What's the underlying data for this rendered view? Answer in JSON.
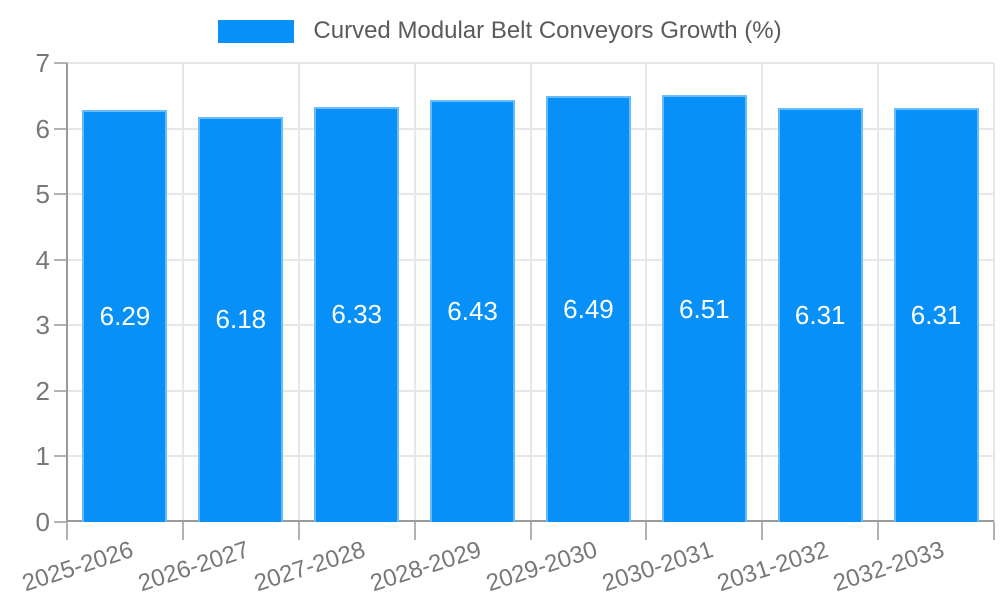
{
  "chart_data": {
    "type": "bar",
    "title": "Curved Modular Belt Conveyors Growth (%)",
    "legend_entries": [
      {
        "label": "Curved Modular Belt Conveyors Growth (%)",
        "color": "#0690f8"
      }
    ],
    "legend_position": "top",
    "categories": [
      "2025-2026",
      "2026-2027",
      "2027-2028",
      "2028-2029",
      "2029-2030",
      "2030-2031",
      "2031-2032",
      "2032-2033"
    ],
    "values": [
      6.29,
      6.18,
      6.33,
      6.43,
      6.49,
      6.51,
      6.31,
      6.31
    ],
    "value_labels": [
      "6.29",
      "6.18",
      "6.33",
      "6.43",
      "6.49",
      "6.51",
      "6.31",
      "6.31"
    ],
    "xlabel": "",
    "ylabel": "",
    "ylim": [
      0,
      7
    ],
    "yticks": [
      0,
      1,
      2,
      3,
      4,
      5,
      6,
      7
    ],
    "grid": true,
    "x_tick_rotation_deg": -18,
    "colors": {
      "bar": "#0690f8",
      "bar_border": "rgba(255,255,255,0.4)",
      "value_label": "#ffffff",
      "grid": "#e7e7e7",
      "axis": "#9b9b9b",
      "tick": "#b3b3b3",
      "axis_label": "#77787a",
      "legend_text": "#5a5b5e",
      "background": "#ffffff"
    }
  }
}
